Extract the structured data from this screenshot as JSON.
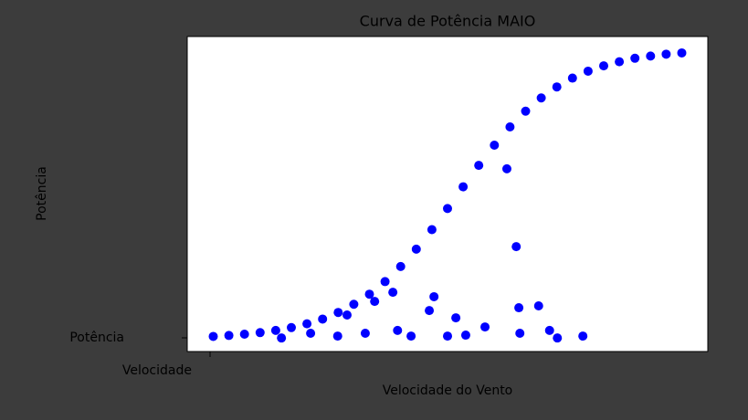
{
  "chart_data": {
    "type": "scatter",
    "title": "Curva de Potência MAIO",
    "x_label": "Velocidade do Vento",
    "y_label": "Potência",
    "color": "#0000ff",
    "x": [
      5,
      8,
      11,
      14,
      17,
      20,
      23,
      26,
      29,
      32,
      35,
      38,
      41,
      44,
      47,
      50,
      53,
      56,
      59,
      62,
      65,
      68,
      71,
      74,
      77,
      80,
      83,
      86,
      89,
      92,
      95,
      63.2,
      39.5,
      47.4,
      63.7,
      67.5,
      46.5,
      51.6,
      57.2,
      63.9,
      69.6,
      76.0,
      71.1,
      18.1,
      23.7,
      28.9,
      34.2,
      40.4,
      43.0,
      50.0,
      53.5,
      36.0,
      30.7,
      61.4
    ],
    "values": [
      4.8,
      5.1,
      5.5,
      6.0,
      6.7,
      7.6,
      8.8,
      10.3,
      12.4,
      15.0,
      18.2,
      22.2,
      27.0,
      32.5,
      38.7,
      45.4,
      52.3,
      59.1,
      65.5,
      71.3,
      76.3,
      80.5,
      84.0,
      86.8,
      89.0,
      90.7,
      92.0,
      93.1,
      93.8,
      94.4,
      94.8,
      33.3,
      18.8,
      17.4,
      13.9,
      14.5,
      13.0,
      10.7,
      7.8,
      5.8,
      6.7,
      4.9,
      4.3,
      4.3,
      5.8,
      4.9,
      5.8,
      6.7,
      4.9,
      4.9,
      5.2,
      15.9,
      11.6,
      58.0
    ],
    "xlim": [
      0,
      100
    ],
    "ylim": [
      0,
      100
    ],
    "xticks": [
      {
        "value": 0,
        "label": "Velocidade"
      }
    ],
    "yticks": [
      {
        "value": 0,
        "label": "Potência"
      }
    ]
  }
}
